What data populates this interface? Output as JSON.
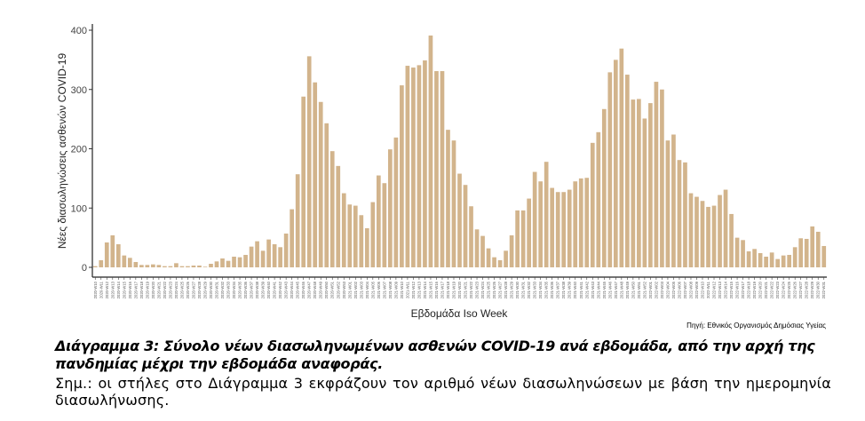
{
  "chart_data": {
    "type": "bar",
    "title": "",
    "xlabel": "Εβδομάδα Iso Week",
    "ylabel": "Νέες διασωληνώσεις ασθενών  COVID-19",
    "ylim": [
      0,
      410
    ],
    "yticks": [
      0,
      100,
      200,
      300,
      400
    ],
    "grid": false,
    "legend": null,
    "bar_color": "#D2B48C",
    "categories": [
      "2020-W10",
      "2020-W11",
      "2020-W12",
      "2020-W13",
      "2020-W14",
      "2020-W15",
      "2020-W16",
      "2020-W17",
      "2020-W18",
      "2020-W19",
      "2020-W20",
      "2020-W21",
      "2020-W22",
      "2020-W23",
      "2020-W24",
      "2020-W25",
      "2020-W26",
      "2020-W27",
      "2020-W28",
      "2020-W29",
      "2020-W30",
      "2020-W31",
      "2020-W32",
      "2020-W33",
      "2020-W34",
      "2020-W35",
      "2020-W36",
      "2020-W37",
      "2020-W38",
      "2020-W39",
      "2020-W40",
      "2020-W41",
      "2020-W42",
      "2020-W43",
      "2020-W44",
      "2020-W45",
      "2020-W46",
      "2020-W47",
      "2020-W48",
      "2020-W49",
      "2020-W50",
      "2020-W51",
      "2020-W52",
      "2020-W53",
      "2021-W01",
      "2021-W02",
      "2021-W03",
      "2021-W04",
      "2021-W05",
      "2021-W06",
      "2021-W07",
      "2021-W08",
      "2021-W09",
      "2021-W10",
      "2021-W11",
      "2021-W12",
      "2021-W13",
      "2021-W14",
      "2021-W15",
      "2021-W16",
      "2021-W17",
      "2021-W18",
      "2021-W19",
      "2021-W20",
      "2021-W21",
      "2021-W22",
      "2021-W23",
      "2021-W24",
      "2021-W25",
      "2021-W26",
      "2021-W27",
      "2021-W28",
      "2021-W29",
      "2021-W30",
      "2021-W31",
      "2021-W32",
      "2021-W33",
      "2021-W34",
      "2021-W35",
      "2021-W36",
      "2021-W37",
      "2021-W38",
      "2021-W39",
      "2021-W40",
      "2021-W41",
      "2021-W42",
      "2021-W43",
      "2021-W44",
      "2021-W45",
      "2021-W46",
      "2021-W47",
      "2021-W48",
      "2021-W49",
      "2021-W50",
      "2021-W51",
      "2021-W52",
      "2022-W01",
      "2022-W02",
      "2022-W03",
      "2022-W04",
      "2022-W05",
      "2022-W06",
      "2022-W07",
      "2022-W08",
      "2022-W09",
      "2022-W10",
      "2022-W11",
      "2022-W12",
      "2022-W13",
      "2022-W14",
      "2022-W15",
      "2022-W16",
      "2022-W17",
      "2022-W18",
      "2022-W19",
      "2022-W20",
      "2022-W21",
      "2022-W22",
      "2022-W23",
      "2022-W24",
      "2022-W25",
      "2022-W26",
      "2022-W27",
      "2022-W28",
      "2022-W29",
      "2022-W30",
      "2022-W31"
    ],
    "values": [
      2,
      12,
      42,
      54,
      39,
      20,
      16,
      9,
      4,
      4,
      5,
      4,
      2,
      2,
      7,
      2,
      2,
      3,
      3,
      1,
      6,
      10,
      15,
      11,
      18,
      17,
      21,
      35,
      44,
      28,
      47,
      39,
      34,
      57,
      98,
      157,
      288,
      356,
      312,
      279,
      243,
      196,
      171,
      125,
      106,
      104,
      88,
      66,
      110,
      155,
      142,
      199,
      219,
      307,
      340,
      337,
      341,
      349,
      391,
      331,
      331,
      232,
      214,
      158,
      139,
      103,
      64,
      53,
      32,
      17,
      12,
      28,
      54,
      96,
      96,
      116,
      161,
      145,
      178,
      134,
      127,
      127,
      131,
      145,
      150,
      151,
      210,
      228,
      267,
      329,
      350,
      369,
      325,
      283,
      284,
      251,
      277,
      313,
      300,
      214,
      224,
      181,
      177,
      125,
      119,
      112,
      102,
      104,
      122,
      131,
      90,
      50,
      46,
      27,
      31,
      24,
      18,
      25,
      14,
      20,
      21,
      34,
      49,
      48,
      69,
      60,
      36
    ]
  },
  "source": "Πηγή: Εθνικός Οργανισμός Δημόσιας Υγείας",
  "caption": {
    "title": "Διάγραμμα 3: Σύνολο νέων διασωληνωμένων ασθενών COVID-19 ανά εβδομάδα, από την αρχή της πανδημίας μέχρι την εβδομάδα αναφοράς.",
    "note": "Σημ.:  οι στήλες στο Διάγραμμα 3 εκφράζουν τον αριθμό νέων διασωληνώσεων με βάση την ημερομηνία διασωλήνωσης."
  }
}
